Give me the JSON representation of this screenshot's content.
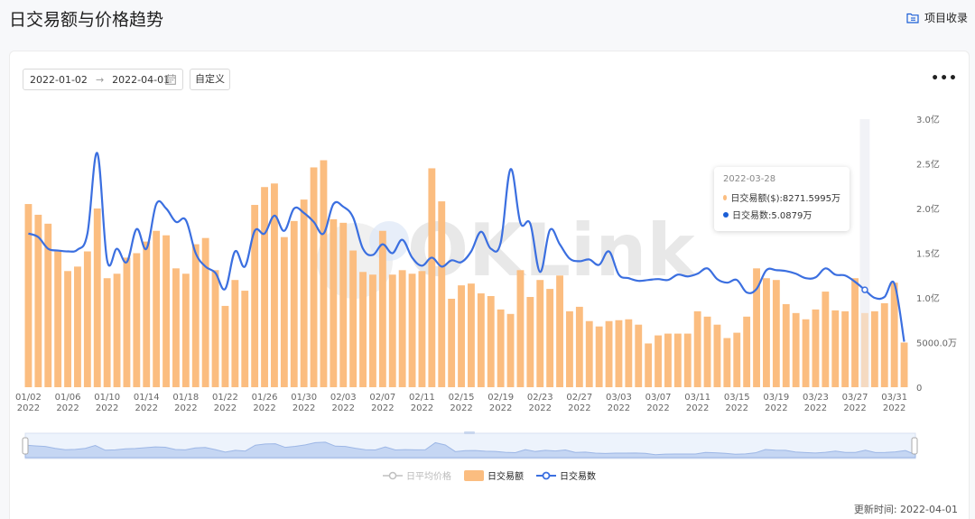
{
  "header": {
    "title": "日交易额与价格趋势",
    "collect_label": "项目收录"
  },
  "controls": {
    "start_date": "2022-01-02",
    "end_date": "2022-04-01",
    "custom_label": "自定义",
    "more_label": "•••"
  },
  "tooltip": {
    "date": "2022-03-28",
    "amount_label": "日交易额($): ",
    "amount_value": "8271.5995万",
    "count_label": "日交易数: ",
    "count_value": "5.0879万"
  },
  "legend": [
    {
      "label": "日平均价格",
      "active": false
    },
    {
      "label": "日交易额",
      "active": true
    },
    {
      "label": "日交易数",
      "active": true
    }
  ],
  "updated_label": "更新时间: 2022-04-01",
  "watermark": "OKLink",
  "colors": {
    "bar": "#fbbd80",
    "line": "#3b6fe0",
    "accent": "#1a5ed6",
    "inactive": "#bfbfbf"
  },
  "chart_data": {
    "type": "bar",
    "x": [
      "01/02",
      "01/03",
      "01/04",
      "01/05",
      "01/06",
      "01/07",
      "01/08",
      "01/09",
      "01/10",
      "01/11",
      "01/12",
      "01/13",
      "01/14",
      "01/15",
      "01/16",
      "01/17",
      "01/18",
      "01/19",
      "01/20",
      "01/21",
      "01/22",
      "01/23",
      "01/24",
      "01/25",
      "01/26",
      "01/27",
      "01/28",
      "01/29",
      "01/30",
      "01/31",
      "02/01",
      "02/02",
      "02/03",
      "02/04",
      "02/05",
      "02/06",
      "02/07",
      "02/08",
      "02/09",
      "02/10",
      "02/11",
      "02/12",
      "02/13",
      "02/14",
      "02/15",
      "02/16",
      "02/17",
      "02/18",
      "02/19",
      "02/20",
      "02/21",
      "02/22",
      "02/23",
      "02/24",
      "02/25",
      "02/26",
      "02/27",
      "02/28",
      "03/01",
      "03/02",
      "03/03",
      "03/04",
      "03/05",
      "03/06",
      "03/07",
      "03/08",
      "03/09",
      "03/10",
      "03/11",
      "03/12",
      "03/13",
      "03/14",
      "03/15",
      "03/16",
      "03/17",
      "03/18",
      "03/19",
      "03/20",
      "03/21",
      "03/22",
      "03/23",
      "03/24",
      "03/25",
      "03/26",
      "03/27",
      "03/28",
      "03/29",
      "03/30",
      "03/31",
      "04/01"
    ],
    "tick_labels": [
      {
        "date": "01/02",
        "year": "2022"
      },
      {
        "date": "01/06",
        "year": "2022"
      },
      {
        "date": "01/10",
        "year": "2022"
      },
      {
        "date": "01/14",
        "year": "2022"
      },
      {
        "date": "01/18",
        "year": "2022"
      },
      {
        "date": "01/22",
        "year": "2022"
      },
      {
        "date": "01/26",
        "year": "2022"
      },
      {
        "date": "01/30",
        "year": "2022"
      },
      {
        "date": "02/03",
        "year": "2022"
      },
      {
        "date": "02/07",
        "year": "2022"
      },
      {
        "date": "02/11",
        "year": "2022"
      },
      {
        "date": "02/15",
        "year": "2022"
      },
      {
        "date": "02/19",
        "year": "2022"
      },
      {
        "date": "02/23",
        "year": "2022"
      },
      {
        "date": "02/27",
        "year": "2022"
      },
      {
        "date": "03/03",
        "year": "2022"
      },
      {
        "date": "03/07",
        "year": "2022"
      },
      {
        "date": "03/11",
        "year": "2022"
      },
      {
        "date": "03/15",
        "year": "2022"
      },
      {
        "date": "03/19",
        "year": "2022"
      },
      {
        "date": "03/23",
        "year": "2022"
      },
      {
        "date": "03/27",
        "year": "2022"
      },
      {
        "date": "03/31",
        "year": "2022"
      }
    ],
    "series": [
      {
        "name": "日交易额",
        "type": "bar",
        "unit": "亿",
        "values": [
          2.05,
          1.93,
          1.83,
          1.52,
          1.3,
          1.35,
          1.52,
          2.0,
          1.22,
          1.27,
          1.45,
          1.5,
          1.63,
          1.75,
          1.7,
          1.33,
          1.27,
          1.6,
          1.67,
          1.31,
          0.91,
          1.2,
          1.08,
          2.04,
          2.24,
          2.28,
          1.68,
          1.86,
          2.1,
          2.46,
          2.54,
          1.88,
          1.84,
          1.53,
          1.29,
          1.26,
          1.75,
          1.26,
          1.31,
          1.27,
          1.3,
          2.45,
          2.08,
          0.99,
          1.14,
          1.16,
          1.05,
          1.02,
          0.87,
          0.82,
          1.31,
          1.01,
          1.2,
          1.1,
          1.25,
          0.85,
          0.9,
          0.74,
          0.68,
          0.74,
          0.75,
          0.76,
          0.7,
          0.49,
          0.58,
          0.6,
          0.6,
          0.6,
          0.85,
          0.79,
          0.7,
          0.55,
          0.61,
          0.79,
          1.33,
          1.22,
          1.2,
          0.93,
          0.83,
          0.76,
          0.87,
          1.07,
          0.86,
          0.85,
          1.22,
          0.83,
          0.85,
          0.94,
          1.17,
          0.5
        ]
      },
      {
        "name": "日交易数",
        "type": "line",
        "values": [
          1.72,
          1.68,
          1.55,
          1.53,
          1.52,
          1.54,
          1.72,
          2.62,
          1.42,
          1.55,
          1.4,
          1.77,
          1.55,
          2.05,
          2.0,
          1.85,
          1.87,
          1.5,
          1.35,
          1.28,
          1.1,
          1.52,
          1.35,
          1.75,
          1.72,
          1.92,
          1.75,
          2.0,
          1.95,
          1.85,
          1.72,
          2.05,
          2.02,
          1.9,
          1.55,
          1.48,
          1.6,
          1.5,
          1.65,
          1.45,
          1.36,
          1.45,
          1.35,
          1.42,
          1.4,
          1.52,
          1.74,
          1.55,
          1.62,
          2.44,
          1.84,
          1.83,
          1.29,
          1.76,
          1.6,
          1.44,
          1.41,
          1.43,
          1.37,
          1.52,
          1.26,
          1.22,
          1.19,
          1.2,
          1.21,
          1.2,
          1.26,
          1.24,
          1.27,
          1.33,
          1.21,
          1.17,
          1.2,
          1.06,
          1.1,
          1.31,
          1.31,
          1.3,
          1.27,
          1.22,
          1.23,
          1.33,
          1.26,
          1.25,
          1.18,
          1.09,
          1.0,
          1.01,
          1.16,
          0.51
        ]
      }
    ],
    "y_ticks": [
      "0",
      "5000.0万",
      "1.0亿",
      "1.5亿",
      "2.0亿",
      "2.5亿",
      "3.0亿"
    ],
    "ylim": [
      0,
      3.0
    ],
    "highlight_index": 85,
    "grid": false,
    "legend_position": "bottom-center"
  }
}
